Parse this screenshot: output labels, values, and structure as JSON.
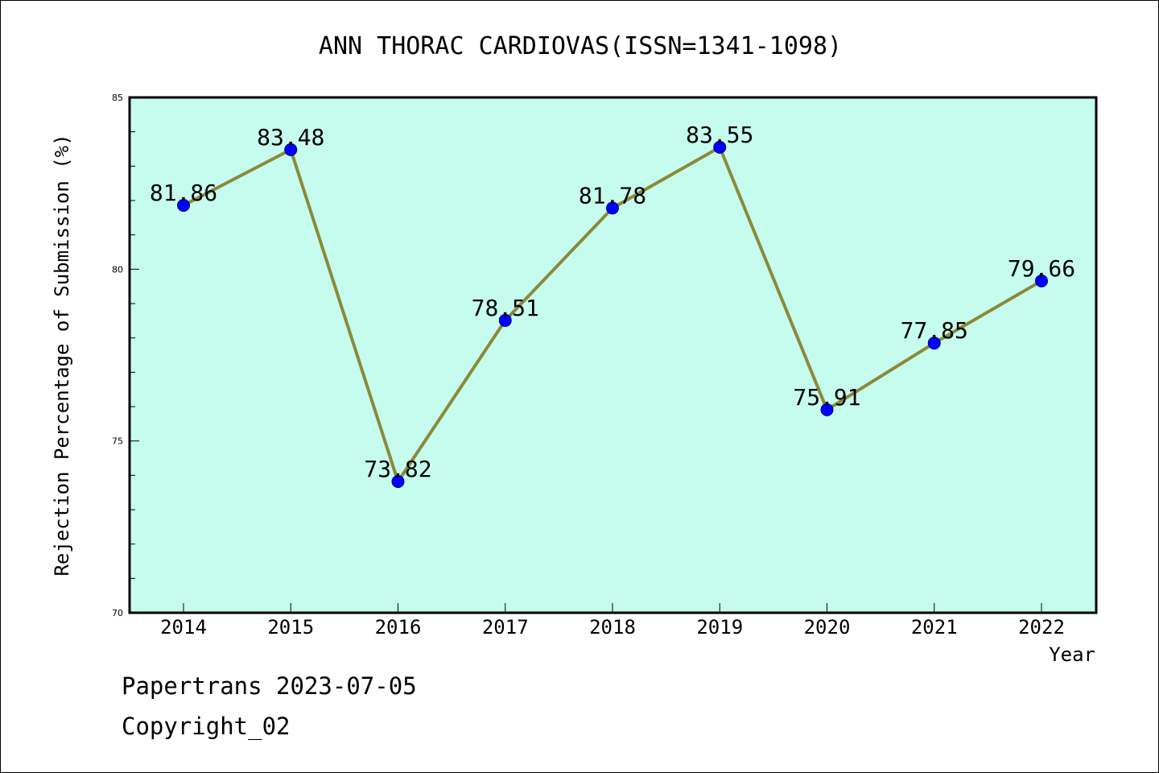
{
  "chart_data": {
    "type": "line",
    "title": "ANN THORAC CARDIOVAS(ISSN=1341-1098)",
    "xlabel": "Year",
    "ylabel": "Rejection Percentage of Submission (%)",
    "categories": [
      "2014",
      "2015",
      "2016",
      "2017",
      "2018",
      "2019",
      "2020",
      "2021",
      "2022"
    ],
    "series": [
      {
        "values": [
          81.86,
          83.48,
          73.82,
          78.51,
          81.78,
          83.55,
          75.91,
          77.85,
          79.66
        ],
        "labels": [
          "81.86",
          "83.48",
          "73.82",
          "78.51",
          "81.78",
          "83.55",
          "75.91",
          "77.85",
          "79.66"
        ]
      }
    ],
    "ylim": [
      70,
      85
    ],
    "yticks": [
      "70",
      "75",
      "80",
      "85"
    ],
    "grid": false,
    "colors": {
      "plot_background": "#c6fcee",
      "line": "#8b8a3a",
      "marker": "#0000ff"
    }
  },
  "footer": {
    "line1": "Papertrans 2023-07-05",
    "line2": "Copyright_02"
  }
}
